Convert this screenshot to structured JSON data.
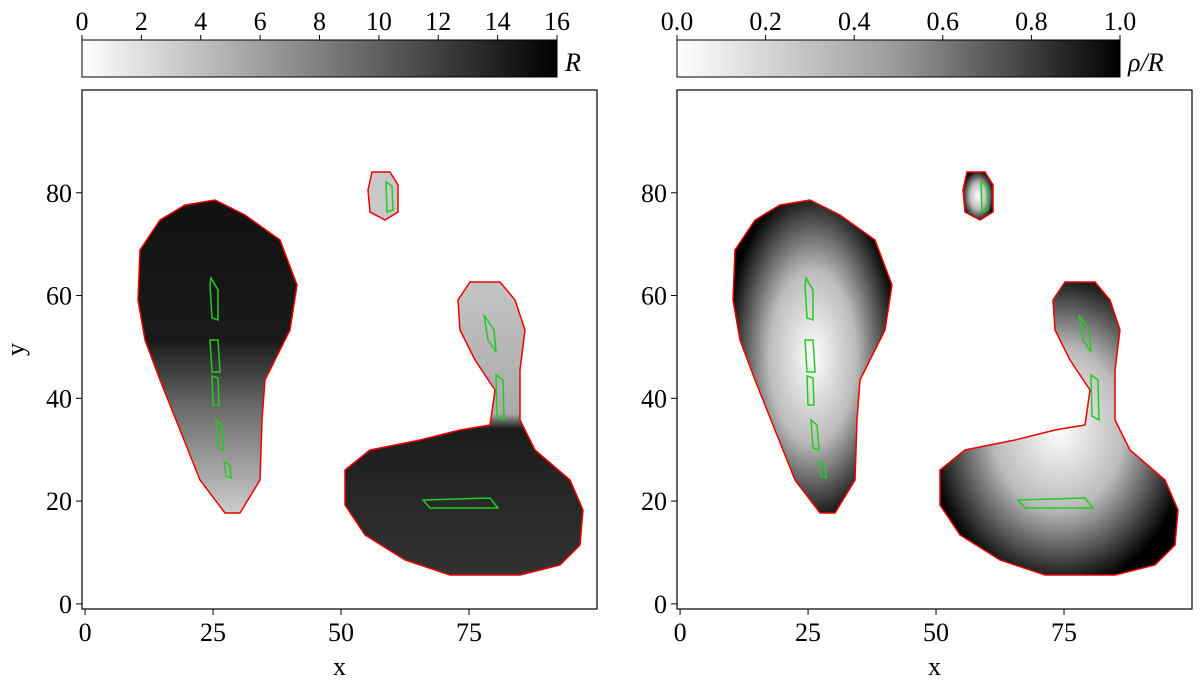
{
  "chart_data": [
    {
      "type": "heatmap",
      "xlabel": "x",
      "ylabel": "y",
      "xlim": [
        -0.6,
        100
      ],
      "ylim": [
        -1,
        100
      ],
      "xticks": [
        0,
        25,
        50,
        75
      ],
      "yticks": [
        0,
        20,
        40,
        60,
        80
      ],
      "colorbar_label": "R",
      "colorbar_lim": [
        0,
        16
      ],
      "colorbar_ticks": [
        0,
        2,
        4,
        6,
        8,
        10,
        12,
        14,
        16
      ]
    },
    {
      "type": "heatmap",
      "xlabel": "x",
      "xlim": [
        -0.6,
        100
      ],
      "ylim": [
        -1,
        100
      ],
      "xticks": [
        0,
        25,
        50,
        75
      ],
      "yticks": [
        0,
        20,
        40,
        60,
        80
      ],
      "colorbar_label": "ρ/R",
      "colorbar_lim": [
        0,
        1
      ],
      "colorbar_ticks": [
        {
          "value": 0,
          "label": "0.0"
        },
        {
          "value": 0.2,
          "label": "0.2"
        },
        {
          "value": 0.4,
          "label": "0.4"
        },
        {
          "value": 0.6,
          "label": "0.6"
        },
        {
          "value": 0.8,
          "label": "0.8"
        },
        {
          "value": 1,
          "label": "1.0"
        }
      ]
    }
  ]
}
